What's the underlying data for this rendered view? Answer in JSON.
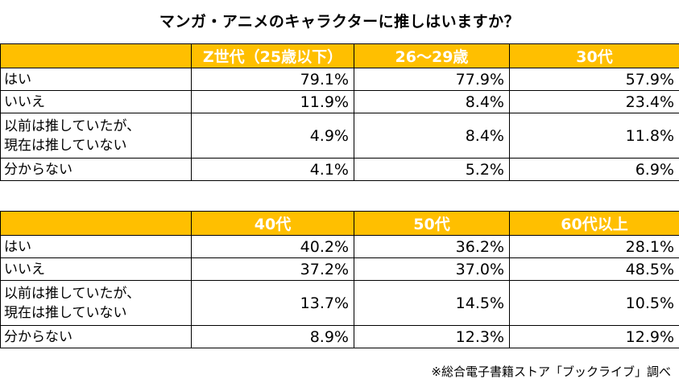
{
  "title": "マンガ・アニメのキャラクターに推しはいますか？",
  "tables": [
    {
      "headers": [
        "",
        "Z世代（25歳以下）",
        "26～29歳",
        "30代"
      ],
      "rows": [
        {
          "label": "はい",
          "values": [
            "79.1%",
            "77.9%",
            "57.9%"
          ]
        },
        {
          "label": "いいえ",
          "values": [
            "11.9%",
            "8.4%",
            "23.4%"
          ]
        },
        {
          "label_line1": "以前は推していたが、",
          "label_line2": "現在は推していない",
          "values": [
            "4.9%",
            "8.4%",
            "11.8%"
          ]
        },
        {
          "label": "分からない",
          "values": [
            "4.1%",
            "5.2%",
            "6.9%"
          ]
        }
      ]
    },
    {
      "headers": [
        "",
        "40代",
        "50代",
        "60代以上"
      ],
      "rows": [
        {
          "label": "はい",
          "values": [
            "40.2%",
            "36.2%",
            "28.1%"
          ]
        },
        {
          "label": "いいえ",
          "values": [
            "37.2%",
            "37.0%",
            "48.5%"
          ]
        },
        {
          "label_line1": "以前は推していたが、",
          "label_line2": "現在は推していない",
          "values": [
            "13.7%",
            "14.5%",
            "10.5%"
          ]
        },
        {
          "label": "分からない",
          "values": [
            "8.9%",
            "12.3%",
            "12.9%"
          ]
        }
      ]
    }
  ],
  "source": "※総合電子書籍ストア「ブックライブ」調べ",
  "colors": {
    "header_bg": "#ffbf00",
    "header_text": "#ffffff",
    "border": "#000000"
  }
}
